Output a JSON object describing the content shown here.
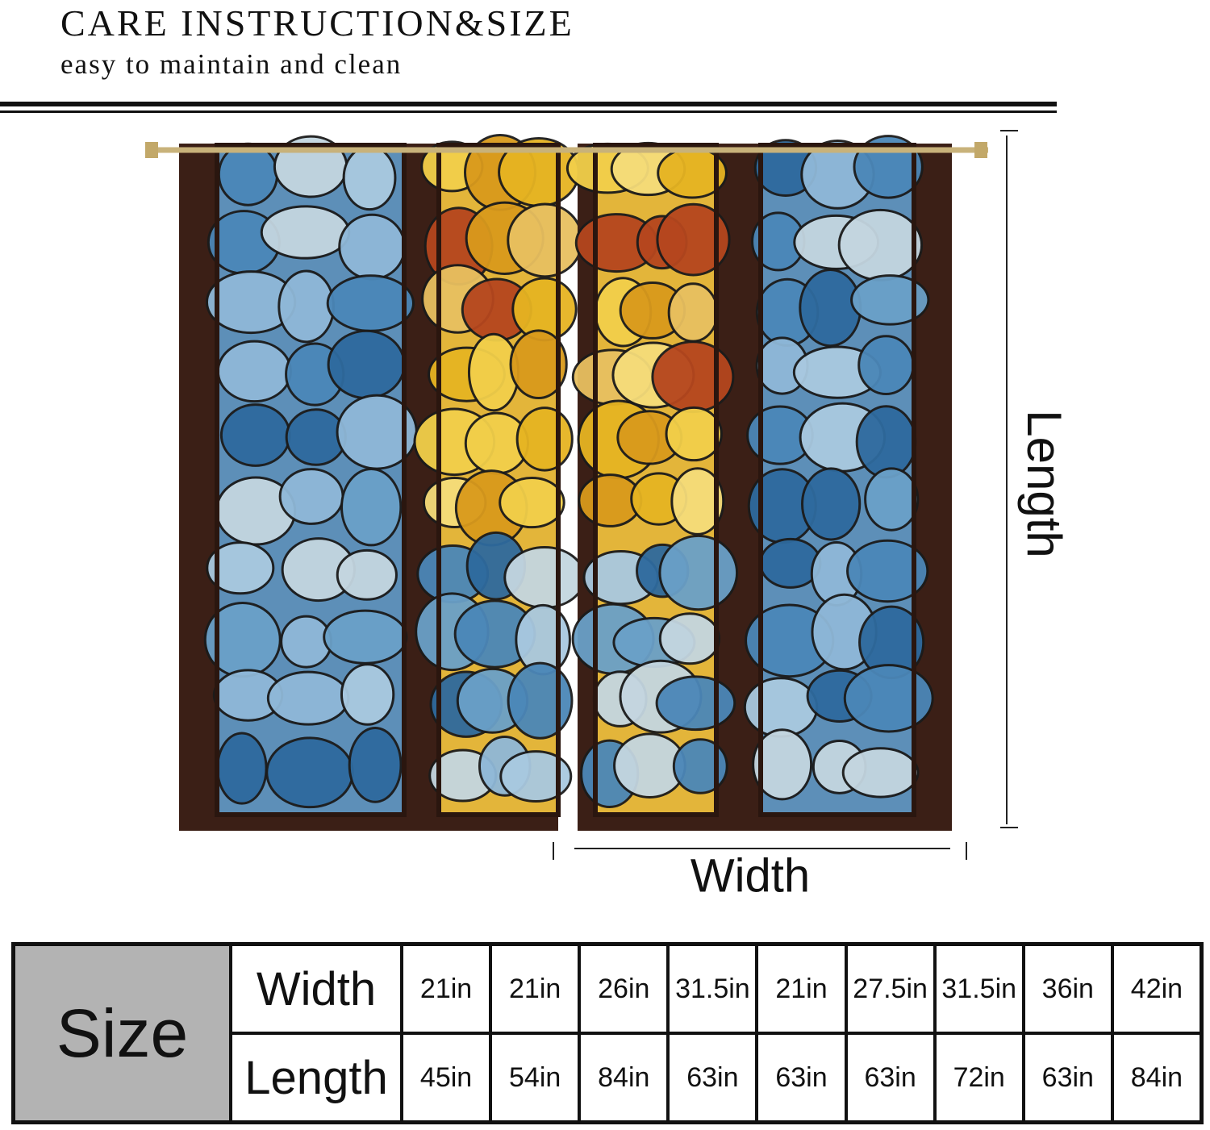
{
  "header": {
    "title": "CARE INSTRUCTION&SIZE",
    "subtitle": "easy to maintain and clean"
  },
  "diagram": {
    "length_label": "Length",
    "width_label": "Width"
  },
  "table": {
    "header": "Size",
    "rows": [
      {
        "label": "Width",
        "cells": [
          "21in",
          "21in",
          "26in",
          "31.5in",
          "21in",
          "27.5in",
          "31.5in",
          "36in",
          "42in"
        ]
      },
      {
        "label": "Length",
        "cells": [
          "45in",
          "54in",
          "84in",
          "63in",
          "63in",
          "63in",
          "72in",
          "63in",
          "84in"
        ]
      }
    ]
  }
}
